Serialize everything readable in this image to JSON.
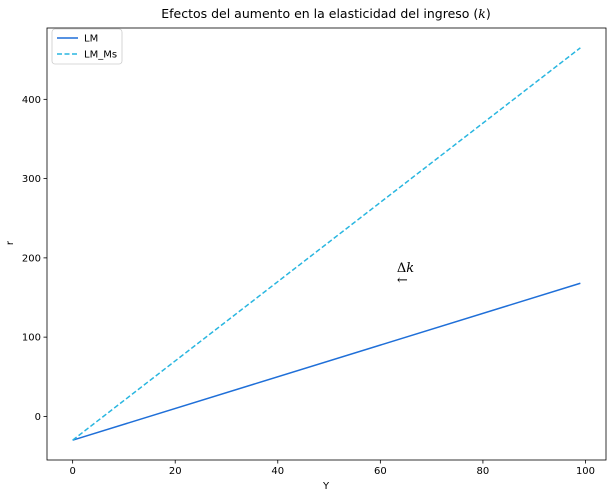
{
  "chart_data": {
    "type": "line",
    "title_prefix": "Efectos del aumento en la elasticidad del ingreso (",
    "title_symbol": "k",
    "title_suffix": ")",
    "xlabel": "Y",
    "ylabel": "r",
    "xlim": [
      -5,
      104
    ],
    "ylim": [
      -55,
      490
    ],
    "xticks": [
      0,
      20,
      40,
      60,
      80,
      100
    ],
    "yticks": [
      0,
      100,
      200,
      300,
      400
    ],
    "legend_position": "top-left",
    "grid": false,
    "series": [
      {
        "name": "LM",
        "style": "solid",
        "color": "#1f6fd8",
        "x": [
          0,
          99
        ],
        "y": [
          -30,
          168
        ]
      },
      {
        "name": "LM_Ms",
        "style": "dashed",
        "color": "#29b6e0",
        "x": [
          0,
          99
        ],
        "y": [
          -30,
          465
        ]
      }
    ],
    "annotation": {
      "delta": "Δ",
      "symbol": "k",
      "arrow": "←",
      "x": 64,
      "y": 185
    }
  }
}
